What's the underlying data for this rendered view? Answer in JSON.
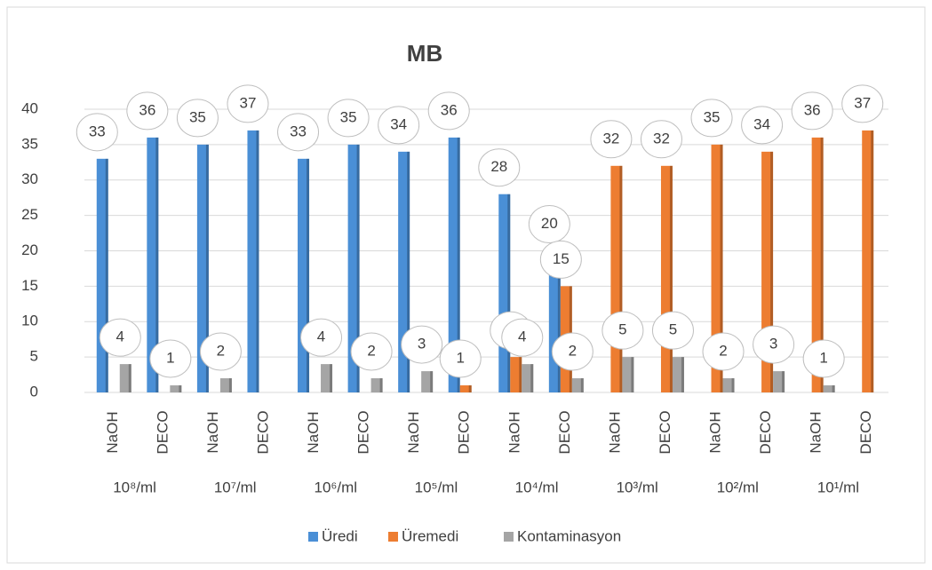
{
  "chart_data": {
    "type": "bar",
    "title": "MB",
    "categories": [
      "NaOH",
      "DECO",
      "NaOH",
      "DECO",
      "NaOH",
      "DECO",
      "NaOH",
      "DECO",
      "NaOH",
      "DECO",
      "NaOH",
      "DECO",
      "NaOH",
      "DECO",
      "NaOH",
      "DECO"
    ],
    "groups": [
      "10⁸/ml",
      "10⁷/ml",
      "10⁶/ml",
      "10⁵/ml",
      "10⁴/ml",
      "10³/ml",
      "10²/ml",
      "10¹/ml"
    ],
    "series": [
      {
        "name": "Üredi",
        "color": "#4a8fd6",
        "values": [
          33,
          36,
          35,
          37,
          33,
          35,
          34,
          36,
          28,
          20,
          0,
          0,
          0,
          0,
          0,
          0
        ]
      },
      {
        "name": "Üremedi",
        "color": "#ed7d31",
        "values": [
          0,
          0,
          0,
          0,
          0,
          0,
          0,
          1,
          5,
          15,
          32,
          32,
          35,
          34,
          36,
          37
        ]
      },
      {
        "name": "Kontaminasyon",
        "color": "#a5a5a5",
        "values": [
          4,
          1,
          2,
          0,
          4,
          2,
          3,
          0,
          4,
          2,
          5,
          5,
          2,
          3,
          1,
          0
        ]
      }
    ],
    "ylim": [
      0,
      40
    ],
    "yticks": [
      0,
      5,
      10,
      15,
      20,
      25,
      30,
      35,
      40
    ],
    "grid": true,
    "legend": "bottom"
  }
}
